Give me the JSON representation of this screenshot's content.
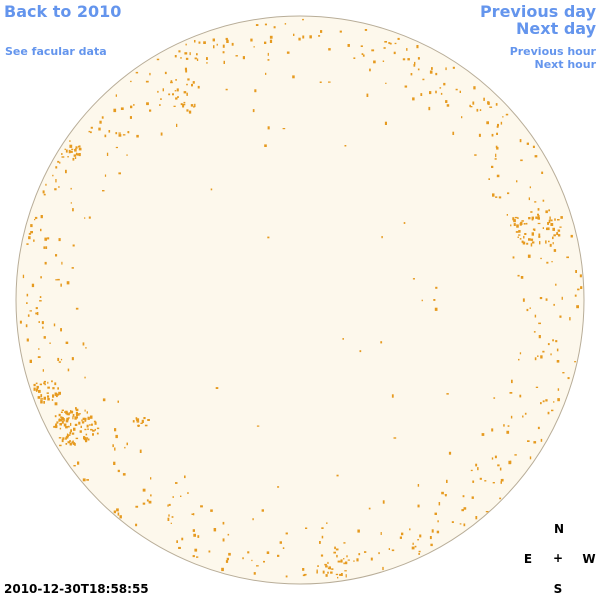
{
  "nav": {
    "back_label": "Back to 2010",
    "facular_label": "See facular data",
    "prev_day_label": "Previous day",
    "next_day_label": "Next day",
    "prev_hour_label": "Previous hour",
    "next_hour_label": "Next hour"
  },
  "timestamp": "2010-12-30T18:58:55",
  "compass": {
    "north": "N",
    "east": "E",
    "center": "+",
    "west": "W",
    "south": "S"
  },
  "colors": {
    "disk_fill": "#fdf8ec",
    "disk_edge": "#b8ad98",
    "feature": "#e69a1f",
    "link": "#6495ed"
  },
  "regions": {
    "active_region_west": "sunspot-group",
    "active_region_east": "sunspot-group"
  }
}
